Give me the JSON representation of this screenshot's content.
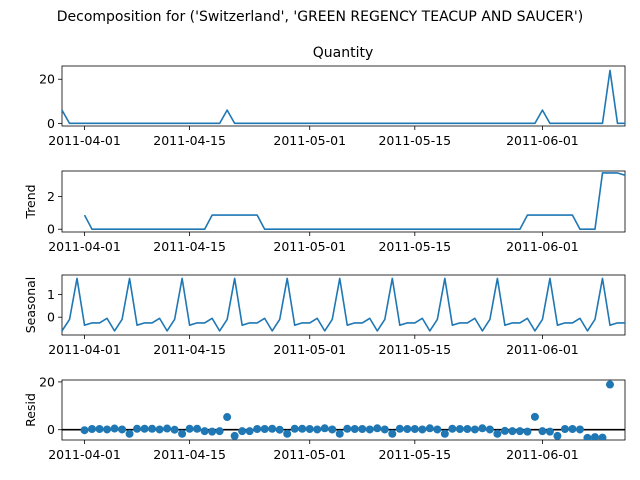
{
  "chart_data": {
    "type": "line",
    "suptitle": "Decomposition for ('Switzerland', 'GREEN REGENCY TEACUP AND SAUCER')",
    "x_start": "2011-03-29",
    "x_ticks": [
      "2011-04-01",
      "2011-04-15",
      "2011-05-01",
      "2011-05-15",
      "2011-06-01"
    ],
    "colors": {
      "series": "#1f77b4",
      "zero_line": "#000000"
    },
    "panels": [
      {
        "name": "observed",
        "kind": "line",
        "title": "Quantity",
        "ylabel": "",
        "ylim": [
          -1.2,
          26
        ],
        "yticks": [
          0,
          20
        ],
        "x_range": [
          0,
          75
        ],
        "values": [
          6,
          0,
          0,
          0,
          0,
          0,
          0,
          0,
          0,
          0,
          0,
          0,
          0,
          0,
          0,
          0,
          0,
          0,
          0,
          0,
          0,
          0,
          6,
          0,
          0,
          0,
          0,
          0,
          0,
          0,
          0,
          0,
          0,
          0,
          0,
          0,
          0,
          0,
          0,
          0,
          0,
          0,
          0,
          0,
          0,
          0,
          0,
          0,
          0,
          0,
          0,
          0,
          0,
          0,
          0,
          0,
          0,
          0,
          0,
          0,
          0,
          0,
          0,
          0,
          6,
          0,
          0,
          0,
          0,
          0,
          0,
          0,
          0,
          24,
          0,
          0,
          -1
        ]
      },
      {
        "name": "trend",
        "kind": "line",
        "title": "",
        "ylabel": "Trend",
        "ylim": [
          -0.17,
          3.55
        ],
        "yticks": [
          0,
          2
        ],
        "x_range": [
          0,
          75
        ],
        "values": [
          null,
          null,
          null,
          0.86,
          0,
          0,
          0,
          0,
          0,
          0,
          0,
          0,
          0,
          0,
          0,
          0,
          0,
          0,
          0,
          0,
          0.86,
          0.86,
          0.86,
          0.86,
          0.86,
          0.86,
          0.86,
          0,
          0,
          0,
          0,
          0,
          0,
          0,
          0,
          0,
          0,
          0,
          0,
          0,
          0,
          0,
          0,
          0,
          0,
          0,
          0,
          0,
          0,
          0,
          0,
          0,
          0,
          0,
          0,
          0,
          0,
          0,
          0,
          0,
          0,
          0,
          0.86,
          0.86,
          0.86,
          0.86,
          0.86,
          0.86,
          0.86,
          0,
          0,
          0,
          3.43,
          3.43,
          3.43,
          3.29,
          null,
          null,
          null
        ]
      },
      {
        "name": "seasonal",
        "kind": "line",
        "title": "",
        "ylabel": "Seasonal",
        "ylim": [
          -0.78,
          1.85
        ],
        "yticks": [
          0,
          1
        ],
        "x_range": [
          0,
          75
        ],
        "values": [
          -0.6,
          -0.1,
          1.7,
          -0.35,
          -0.25,
          -0.25,
          -0.05,
          -0.6,
          -0.1,
          1.7,
          -0.35,
          -0.25,
          -0.25,
          -0.05,
          -0.6,
          -0.1,
          1.7,
          -0.35,
          -0.25,
          -0.25,
          -0.05,
          -0.6,
          -0.1,
          1.7,
          -0.35,
          -0.25,
          -0.25,
          -0.05,
          -0.6,
          -0.1,
          1.7,
          -0.35,
          -0.25,
          -0.25,
          -0.05,
          -0.6,
          -0.1,
          1.7,
          -0.35,
          -0.25,
          -0.25,
          -0.05,
          -0.6,
          -0.1,
          1.7,
          -0.35,
          -0.25,
          -0.25,
          -0.05,
          -0.6,
          -0.1,
          1.7,
          -0.35,
          -0.25,
          -0.25,
          -0.05,
          -0.6,
          -0.1,
          1.7,
          -0.35,
          -0.25,
          -0.25,
          -0.05,
          -0.6,
          -0.1,
          1.7,
          -0.35,
          -0.25,
          -0.25,
          -0.05,
          -0.6,
          -0.1,
          1.7,
          -0.35,
          -0.25,
          -0.25
        ]
      },
      {
        "name": "resid",
        "kind": "scatter",
        "title": "",
        "ylabel": "Resid",
        "ylim": [
          -4.3,
          20.8
        ],
        "yticks": [
          0,
          20
        ],
        "x_range": [
          0,
          75
        ],
        "values": [
          null,
          null,
          null,
          -0.2,
          0.3,
          0.3,
          0.1,
          0.5,
          0.1,
          -1.7,
          0.4,
          0.4,
          0.4,
          0.1,
          0.5,
          0,
          -1.7,
          0.4,
          0.4,
          -0.6,
          -0.8,
          -0.6,
          5.3,
          -2.6,
          -0.6,
          -0.6,
          0.3,
          0.3,
          0.4,
          0,
          -1.7,
          0.4,
          0.4,
          0.3,
          0.1,
          0.6,
          0.1,
          -1.7,
          0.4,
          0.3,
          0.3,
          0.1,
          0.6,
          0.1,
          -1.7,
          0.4,
          0.3,
          0.3,
          0.1,
          0.6,
          0.1,
          -1.7,
          0.4,
          0.3,
          0.3,
          0.1,
          0.6,
          0.1,
          -1.7,
          -0.5,
          -0.6,
          -0.6,
          -0.8,
          5.4,
          -0.6,
          -0.8,
          -2.6,
          0.3,
          0.3,
          0.1,
          -3.4,
          -3.1,
          -3.3,
          18.9,
          null,
          null,
          null
        ]
      }
    ]
  }
}
